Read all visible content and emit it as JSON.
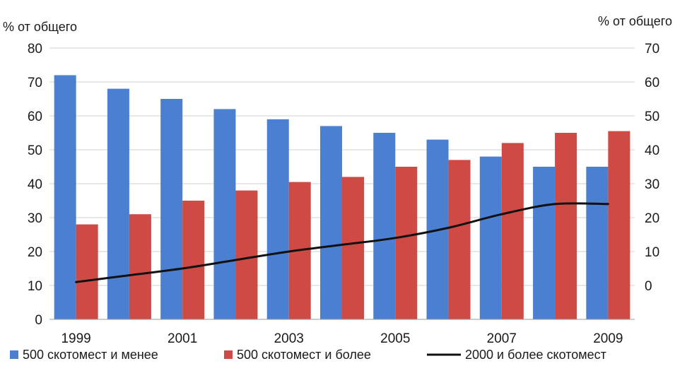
{
  "chart_data": {
    "type": "bar",
    "title": "",
    "xlabel": "",
    "ylabel": "% от общего",
    "y2label": "% от общего",
    "ylim": [
      0,
      80
    ],
    "y2lim": [
      -10,
      70
    ],
    "yticks": [
      "0",
      "10",
      "20",
      "30",
      "40",
      "50",
      "60",
      "70",
      "80"
    ],
    "y2ticks": [
      "0",
      "10",
      "20",
      "30",
      "40",
      "50",
      "60",
      "70"
    ],
    "categories": [
      "1999",
      "2000",
      "2001",
      "2002",
      "2003",
      "2004",
      "2005",
      "2006",
      "2007",
      "2008",
      "2009"
    ],
    "xticks_shown": [
      "1999",
      "2001",
      "2003",
      "2005",
      "2007",
      "2009"
    ],
    "grid": true,
    "legend_position": "bottom",
    "series": [
      {
        "name": "500 скотомест и менее",
        "kind": "bar",
        "axis": "left",
        "color": "#4a7fd1",
        "values": [
          72,
          68,
          65,
          62,
          59,
          57,
          55,
          53,
          48,
          45,
          45
        ]
      },
      {
        "name": "500 скотомест и более",
        "kind": "bar",
        "axis": "left",
        "color": "#d04a45",
        "values": [
          28,
          31,
          35,
          38,
          40.5,
          42,
          45,
          47,
          52,
          55,
          55.5
        ]
      },
      {
        "name": "2000 и более скотомест",
        "kind": "line",
        "axis": "right",
        "color": "#111111",
        "values": [
          1,
          3,
          5,
          7.5,
          10,
          12,
          14,
          17,
          21,
          24,
          24
        ]
      }
    ]
  }
}
